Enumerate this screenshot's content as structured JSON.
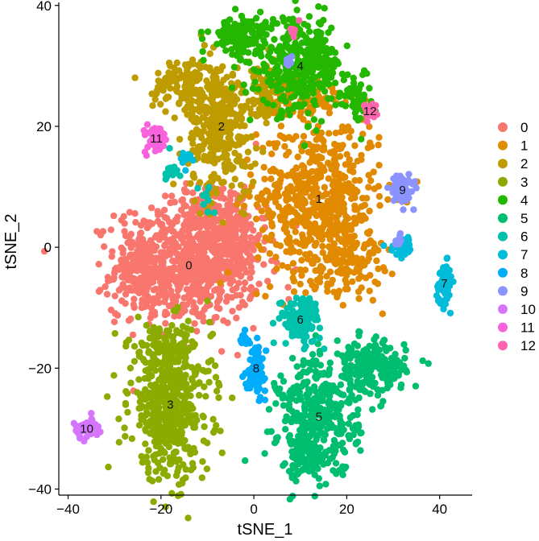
{
  "chart_data": {
    "type": "scatter",
    "xlabel": "tSNE_1",
    "ylabel": "tSNE_2",
    "xlim": [
      -42,
      47
    ],
    "ylim": [
      -41,
      40.5
    ],
    "x_ticks": [
      -40,
      -20,
      0,
      20,
      40
    ],
    "y_ticks": [
      -40,
      -20,
      0,
      20,
      40
    ],
    "x_tick_labels": [
      "−40",
      "−20",
      "0",
      "20",
      "40"
    ],
    "y_tick_labels": [
      "−40",
      "−20",
      "0",
      "20",
      "40"
    ],
    "grid": false,
    "legend_position": "right",
    "legend": [
      "0",
      "1",
      "2",
      "3",
      "4",
      "5",
      "6",
      "7",
      "8",
      "9",
      "10",
      "11",
      "12"
    ],
    "series": [
      {
        "name": "0",
        "color": "#F8766D",
        "label_pos": [
          -14,
          -3
        ],
        "blobs": [
          [
            -14,
            -3,
            14,
            9,
            700
          ],
          [
            -25,
            -4,
            5,
            6,
            120
          ],
          [
            -5,
            2,
            6,
            8,
            150
          ],
          [
            -10,
            6,
            7,
            4,
            80
          ]
        ]
      },
      {
        "name": "1",
        "color": "#E18A00",
        "label_pos": [
          14,
          8
        ],
        "blobs": [
          [
            14,
            8,
            12,
            12,
            600
          ],
          [
            20,
            -2,
            7,
            5,
            120
          ],
          [
            10,
            25,
            8,
            3,
            80
          ]
        ]
      },
      {
        "name": "2",
        "color": "#BE9C00",
        "label_pos": [
          -7,
          20
        ],
        "blobs": [
          [
            -7,
            20,
            7,
            10,
            350
          ],
          [
            -15,
            27,
            6,
            4,
            120
          ],
          [
            2,
            25,
            3,
            5,
            60
          ]
        ]
      },
      {
        "name": "3",
        "color": "#8CAB00",
        "label_pos": [
          -18,
          -26
        ],
        "blobs": [
          [
            -18,
            -26,
            8,
            11,
            500
          ],
          [
            -20,
            -17,
            6,
            3,
            80
          ]
        ]
      },
      {
        "name": "4",
        "color": "#24B700",
        "label_pos": [
          10,
          30
        ],
        "blobs": [
          [
            10,
            30,
            8,
            7,
            350
          ],
          [
            -3,
            35,
            6,
            3,
            120
          ],
          [
            22,
            25,
            3,
            4,
            60
          ]
        ]
      },
      {
        "name": "5",
        "color": "#00BE70",
        "label_pos": [
          14,
          -28
        ],
        "blobs": [
          [
            14,
            -28,
            8,
            9,
            350
          ],
          [
            25,
            -20,
            7,
            4,
            200
          ],
          [
            12,
            -35,
            4,
            3,
            80
          ]
        ]
      },
      {
        "name": "6",
        "color": "#00C1AB",
        "label_pos": [
          10,
          -12
        ],
        "blobs": [
          [
            10,
            -12,
            4,
            3.5,
            120
          ],
          [
            -18,
            13,
            2,
            2,
            15
          ],
          [
            -10,
            8,
            1.5,
            2,
            10
          ]
        ]
      },
      {
        "name": "7",
        "color": "#00BBDA",
        "label_pos": [
          41,
          -6
        ],
        "blobs": [
          [
            41,
            -6,
            1.5,
            3,
            60
          ],
          [
            32,
            0,
            2.5,
            1.5,
            30
          ],
          [
            -14,
            15,
            1.5,
            1.5,
            10
          ]
        ]
      },
      {
        "name": "8",
        "color": "#00ACFC",
        "label_pos": [
          0.5,
          -20
        ],
        "blobs": [
          [
            0.5,
            -20,
            1.8,
            3.5,
            80
          ],
          [
            -2,
            -15,
            1.2,
            1.5,
            15
          ]
        ]
      },
      {
        "name": "9",
        "color": "#8B93FF",
        "label_pos": [
          32,
          9.5
        ],
        "blobs": [
          [
            32,
            9.5,
            2.2,
            2.2,
            70
          ],
          [
            7,
            31,
            1,
            1,
            8
          ],
          [
            31,
            1,
            1,
            1,
            8
          ]
        ]
      },
      {
        "name": "10",
        "color": "#D575FE",
        "label_pos": [
          -36,
          -30
        ],
        "blobs": [
          [
            -36,
            -30,
            2.5,
            1.4,
            60
          ]
        ]
      },
      {
        "name": "11",
        "color": "#F962DD",
        "label_pos": [
          -21,
          18
        ],
        "blobs": [
          [
            -21,
            18,
            2.2,
            2.2,
            50
          ]
        ]
      },
      {
        "name": "12",
        "color": "#FF65AC",
        "label_pos": [
          25,
          22.5
        ],
        "blobs": [
          [
            25,
            22.5,
            1.3,
            1.3,
            30
          ],
          [
            9,
            36,
            1,
            1,
            8
          ]
        ]
      }
    ]
  }
}
